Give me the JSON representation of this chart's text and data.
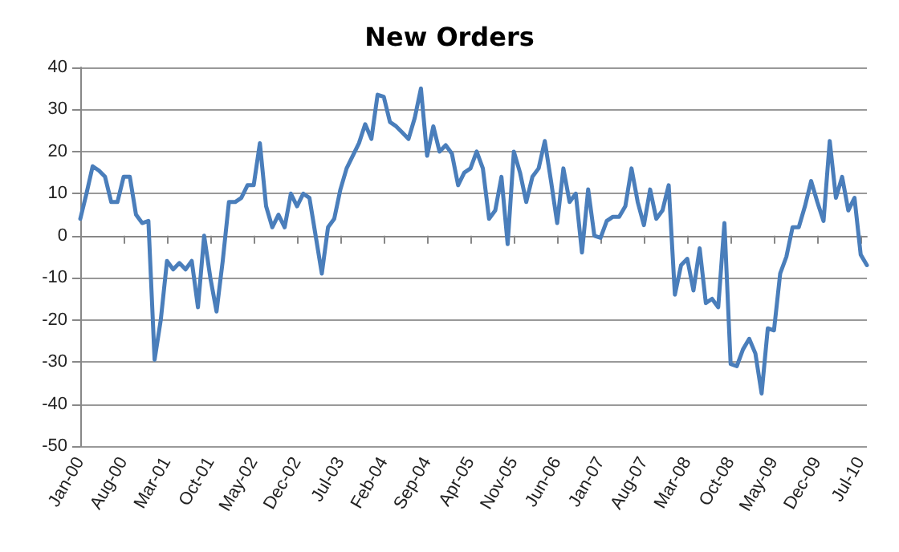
{
  "chart_data": {
    "type": "line",
    "title": "New Orders",
    "categories": [
      "Jan-00",
      null,
      null,
      null,
      null,
      null,
      null,
      "Aug-00",
      null,
      null,
      null,
      null,
      null,
      null,
      "Mar-01",
      null,
      null,
      null,
      null,
      null,
      null,
      "Oct-01",
      null,
      null,
      null,
      null,
      null,
      null,
      "May-02",
      null,
      null,
      null,
      null,
      null,
      null,
      "Dec-02",
      null,
      null,
      null,
      null,
      null,
      null,
      "Jul-03",
      null,
      null,
      null,
      null,
      null,
      null,
      "Feb-04",
      null,
      null,
      null,
      null,
      null,
      null,
      "Sep-04",
      null,
      null,
      null,
      null,
      null,
      null,
      "Apr-05",
      null,
      null,
      null,
      null,
      null,
      null,
      "Nov-05",
      null,
      null,
      null,
      null,
      null,
      null,
      "Jun-06",
      null,
      null,
      null,
      null,
      null,
      null,
      "Jan-07",
      null,
      null,
      null,
      null,
      null,
      null,
      "Aug-07",
      null,
      null,
      null,
      null,
      null,
      null,
      "Mar-08",
      null,
      null,
      null,
      null,
      null,
      null,
      "Oct-08",
      null,
      null,
      null,
      null,
      null,
      null,
      "May-09",
      null,
      null,
      null,
      null,
      null,
      null,
      "Dec-09",
      null,
      null,
      null,
      null,
      null,
      null,
      "Jul-10",
      null
    ],
    "series": [
      {
        "color": "#4a7ebb",
        "values": [
          4,
          10,
          16.5,
          15.5,
          14,
          8,
          8,
          14,
          14,
          5,
          3,
          3.5,
          -29.5,
          -20,
          -6,
          -8,
          -6.5,
          -8,
          -6,
          -17,
          0,
          -10,
          -18,
          -6,
          8,
          8,
          9,
          12,
          12,
          22,
          7,
          2,
          5,
          2,
          10,
          7,
          10,
          9,
          0,
          -9,
          2,
          4,
          11,
          16,
          19,
          22,
          26.5,
          23,
          33.5,
          33,
          27,
          26,
          24.5,
          23,
          28,
          35,
          19,
          26,
          20,
          21.5,
          19.5,
          12,
          15,
          16,
          20,
          16,
          4,
          6,
          14,
          -2,
          20,
          15,
          8,
          14,
          16,
          22.5,
          13,
          3,
          16,
          8,
          10,
          -4,
          11,
          0,
          -0.5,
          3.5,
          4.5,
          4.5,
          7,
          16,
          8,
          2.5,
          11,
          4,
          6,
          12,
          -14,
          -7,
          -5.5,
          -13,
          -3,
          -16,
          -15,
          -17,
          3,
          -30.5,
          -31,
          -27,
          -24.5,
          -28,
          -37.5,
          -22,
          -22.5,
          -9,
          -5,
          2,
          2,
          7,
          13,
          8,
          3.5,
          22.5,
          9,
          14,
          6,
          9,
          -4.5,
          -7
        ]
      }
    ],
    "ylim": [
      -50,
      40
    ],
    "yticks": [
      -50,
      -40,
      -30,
      -20,
      -10,
      0,
      10,
      20,
      30,
      40
    ],
    "grid": "y",
    "marker": "none",
    "line_style": "solid"
  }
}
